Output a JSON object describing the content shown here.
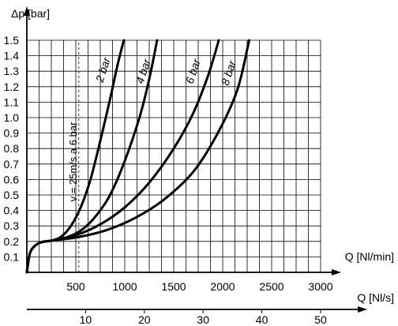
{
  "chart_data": {
    "type": "line",
    "ylabel": "Δp [bar]",
    "xlabel": "Q [Nl/min]",
    "x2label": "Q [Nl/s]",
    "ylim": [
      0,
      1.5
    ],
    "xlim": [
      0,
      3000
    ],
    "yticks": [
      "0.1",
      "0.2",
      "0.3",
      "0.4",
      "0.5",
      "0.6",
      "0.7",
      "0.8",
      "0.9",
      "1.0",
      "1.1",
      "1.2",
      "1.3",
      "1.4",
      "1.5"
    ],
    "xticks": [
      "500",
      "1000",
      "1500",
      "2000",
      "2500",
      "3000"
    ],
    "x2ticks": [
      "10",
      "20",
      "30",
      "40",
      "50"
    ],
    "grid": true,
    "annotation": "v = 25m/s a 6 bar",
    "annotation_x": 530,
    "series": [
      {
        "name": "2 bar",
        "x": [
          0,
          30,
          80,
          150,
          250,
          350,
          450,
          550,
          650,
          750,
          850,
          930,
          990
        ],
        "y": [
          0,
          0.12,
          0.17,
          0.195,
          0.205,
          0.23,
          0.3,
          0.42,
          0.6,
          0.85,
          1.12,
          1.35,
          1.5
        ]
      },
      {
        "name": "4 bar",
        "x": [
          0,
          30,
          80,
          150,
          250,
          400,
          550,
          700,
          850,
          1000,
          1150,
          1250,
          1330
        ],
        "y": [
          0,
          0.12,
          0.17,
          0.195,
          0.205,
          0.225,
          0.27,
          0.36,
          0.5,
          0.72,
          1.0,
          1.25,
          1.5
        ]
      },
      {
        "name": "6 bar",
        "x": [
          0,
          30,
          80,
          150,
          250,
          500,
          750,
          1000,
          1250,
          1500,
          1700,
          1850,
          1960
        ],
        "y": [
          0,
          0.12,
          0.17,
          0.195,
          0.205,
          0.24,
          0.31,
          0.42,
          0.58,
          0.8,
          1.03,
          1.27,
          1.5
        ]
      },
      {
        "name": "8 bar",
        "x": [
          0,
          30,
          80,
          150,
          250,
          500,
          800,
          1100,
          1400,
          1700,
          1950,
          2150,
          2270
        ],
        "y": [
          0,
          0.12,
          0.17,
          0.195,
          0.205,
          0.225,
          0.27,
          0.35,
          0.47,
          0.65,
          0.9,
          1.18,
          1.5
        ]
      }
    ]
  }
}
